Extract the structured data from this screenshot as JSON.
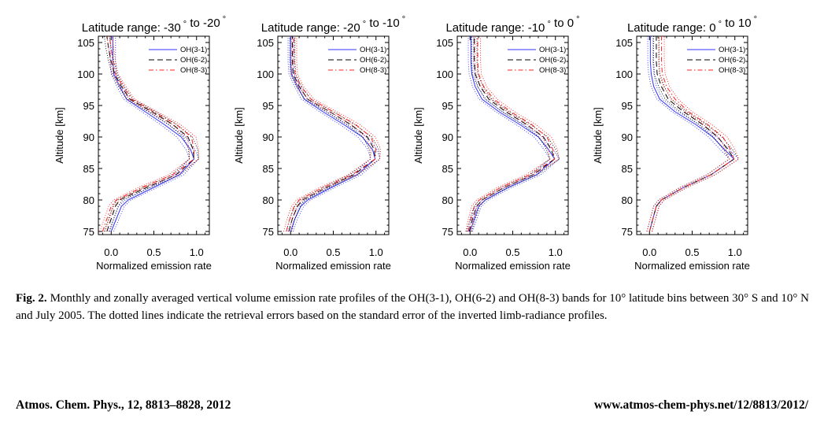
{
  "chart_data": [
    {
      "type": "line",
      "title": "Latitude range: -30° to -20°",
      "title_parts": [
        "Latitude range: -30",
        "°",
        " to -20",
        "°"
      ],
      "xlabel": "Normalized emission rate",
      "ylabel": "Altitude [km]",
      "xlim": [
        -0.15,
        1.15
      ],
      "ylim": [
        74.5,
        106
      ],
      "xticks": [
        "0.0",
        "0.5",
        "1.0"
      ],
      "yticks": [
        "75",
        "80",
        "85",
        "90",
        "95",
        "100",
        "105"
      ],
      "legend_position": "top-right",
      "series": [
        {
          "name": "OH(3-1)",
          "color": "#3333ff",
          "dash": "solid",
          "y": [
            75,
            77,
            79,
            80,
            82,
            84,
            86.5,
            88,
            90,
            92,
            94,
            96,
            98,
            100,
            102,
            104,
            106
          ],
          "x": [
            0.0,
            0.06,
            0.12,
            0.2,
            0.5,
            0.8,
            0.97,
            0.93,
            0.82,
            0.62,
            0.4,
            0.18,
            0.1,
            0.03,
            0.02,
            0.02,
            0.02
          ]
        },
        {
          "name": "OH(6-2)",
          "color": "#000000",
          "dash": "longdash",
          "y": [
            75,
            77,
            79,
            80,
            82,
            84,
            86.5,
            88,
            90,
            92,
            94,
            96,
            98,
            100,
            102,
            104,
            106
          ],
          "x": [
            -0.05,
            0.0,
            0.05,
            0.1,
            0.42,
            0.76,
            0.97,
            0.96,
            0.9,
            0.72,
            0.48,
            0.22,
            0.12,
            0.04,
            0.0,
            -0.03,
            -0.05
          ]
        },
        {
          "name": "OH(8-3)",
          "color": "#ff2222",
          "dash": "dashdot",
          "y": [
            75,
            77,
            79,
            80,
            82,
            84,
            86.5,
            88,
            90,
            92,
            94,
            96,
            98,
            100,
            102,
            104,
            106
          ],
          "x": [
            -0.1,
            -0.05,
            0.0,
            0.06,
            0.36,
            0.72,
            0.97,
            0.97,
            0.94,
            0.76,
            0.5,
            0.24,
            0.14,
            0.05,
            0.02,
            0.0,
            -0.02
          ]
        }
      ]
    },
    {
      "type": "line",
      "title": "Latitude range: -20° to -10°",
      "title_parts": [
        "Latitude range: -20",
        "°",
        " to -10",
        "°"
      ],
      "xlabel": "Normalized emission rate",
      "ylabel": "Altitude [km]",
      "xlim": [
        -0.15,
        1.15
      ],
      "ylim": [
        74.5,
        106
      ],
      "xticks": [
        "0.0",
        "0.5",
        "1.0"
      ],
      "yticks": [
        "75",
        "80",
        "85",
        "90",
        "95",
        "100",
        "105"
      ],
      "legend_position": "top-right",
      "series": [
        {
          "name": "OH(3-1)",
          "color": "#3333ff",
          "dash": "solid",
          "y": [
            75,
            77,
            79,
            80,
            82,
            84,
            86.5,
            88,
            90,
            92,
            94,
            96,
            98,
            100,
            102,
            104,
            106
          ],
          "x": [
            0.0,
            0.05,
            0.12,
            0.2,
            0.48,
            0.78,
            0.99,
            0.96,
            0.84,
            0.62,
            0.38,
            0.16,
            0.08,
            0.01,
            0.0,
            0.0,
            0.0
          ]
        },
        {
          "name": "OH(6-2)",
          "color": "#000000",
          "dash": "longdash",
          "y": [
            75,
            77,
            79,
            80,
            82,
            84,
            86.5,
            88,
            90,
            92,
            94,
            96,
            98,
            100,
            102,
            104,
            106
          ],
          "x": [
            -0.02,
            0.02,
            0.08,
            0.14,
            0.42,
            0.74,
            0.99,
            0.98,
            0.9,
            0.7,
            0.46,
            0.2,
            0.1,
            0.03,
            0.02,
            0.02,
            0.02
          ]
        },
        {
          "name": "OH(8-3)",
          "color": "#ff2222",
          "dash": "dashdot",
          "y": [
            75,
            77,
            79,
            80,
            82,
            84,
            86.5,
            88,
            90,
            92,
            94,
            96,
            98,
            100,
            102,
            104,
            106
          ],
          "x": [
            -0.05,
            -0.01,
            0.04,
            0.1,
            0.38,
            0.72,
            0.99,
            1.0,
            0.94,
            0.76,
            0.5,
            0.24,
            0.12,
            0.05,
            0.04,
            0.04,
            0.04
          ]
        }
      ]
    },
    {
      "type": "line",
      "title": "Latitude range: -10° to 0°",
      "title_parts": [
        "Latitude range: -10",
        "°",
        " to 0",
        "°"
      ],
      "xlabel": "Normalized emission rate",
      "ylabel": "Altitude [km]",
      "xlim": [
        -0.15,
        1.15
      ],
      "ylim": [
        74.5,
        106
      ],
      "xticks": [
        "0.0",
        "0.5",
        "1.0"
      ],
      "yticks": [
        "75",
        "80",
        "85",
        "90",
        "95",
        "100",
        "105"
      ],
      "legend_position": "top-right",
      "series": [
        {
          "name": "OH(3-1)",
          "color": "#3333ff",
          "dash": "solid",
          "y": [
            75,
            77,
            79,
            80,
            82,
            84,
            86.5,
            88,
            90,
            92,
            94,
            96,
            98,
            100,
            102,
            104,
            106
          ],
          "x": [
            0.0,
            0.05,
            0.1,
            0.18,
            0.45,
            0.78,
            0.99,
            0.92,
            0.8,
            0.58,
            0.34,
            0.14,
            0.06,
            0.02,
            0.01,
            0.01,
            0.01
          ]
        },
        {
          "name": "OH(6-2)",
          "color": "#000000",
          "dash": "longdash",
          "y": [
            75,
            77,
            79,
            80,
            82,
            84,
            86.5,
            88,
            90,
            92,
            94,
            96,
            98,
            100,
            102,
            104,
            106
          ],
          "x": [
            -0.01,
            0.03,
            0.08,
            0.14,
            0.4,
            0.74,
            0.99,
            0.95,
            0.86,
            0.66,
            0.42,
            0.22,
            0.12,
            0.06,
            0.05,
            0.05,
            0.05
          ]
        },
        {
          "name": "OH(8-3)",
          "color": "#ff2222",
          "dash": "dashdot",
          "y": [
            75,
            77,
            79,
            80,
            82,
            84,
            86.5,
            88,
            90,
            92,
            94,
            96,
            98,
            100,
            102,
            104,
            106
          ],
          "x": [
            -0.02,
            0.01,
            0.05,
            0.11,
            0.36,
            0.7,
            0.99,
            0.97,
            0.9,
            0.72,
            0.48,
            0.28,
            0.16,
            0.1,
            0.09,
            0.09,
            0.09
          ]
        }
      ]
    },
    {
      "type": "line",
      "title": "Latitude range: 0° to 10°",
      "title_parts": [
        "Latitude range: 0",
        "°",
        " to 10",
        "°"
      ],
      "xlabel": "Normalized emission rate",
      "ylabel": "Altitude [km]",
      "xlim": [
        -0.15,
        1.15
      ],
      "ylim": [
        74.5,
        106
      ],
      "xticks": [
        "0.0",
        "0.5",
        "1.0"
      ],
      "yticks": [
        "75",
        "80",
        "85",
        "90",
        "95",
        "100",
        "105"
      ],
      "legend_position": "top-right",
      "series": [
        {
          "name": "OH(3-1)",
          "color": "#3333ff",
          "dash": "solid",
          "y": [
            75,
            77,
            79,
            80,
            82,
            84,
            86.5,
            88,
            90,
            92,
            94,
            96,
            98,
            100,
            102,
            104,
            106
          ],
          "x": [
            0.0,
            0.04,
            0.08,
            0.14,
            0.4,
            0.72,
            0.99,
            0.88,
            0.74,
            0.54,
            0.3,
            0.12,
            0.05,
            0.02,
            0.01,
            0.01,
            0.01
          ]
        },
        {
          "name": "OH(6-2)",
          "color": "#000000",
          "dash": "longdash",
          "y": [
            75,
            77,
            79,
            80,
            82,
            84,
            86.5,
            88,
            90,
            92,
            94,
            96,
            98,
            100,
            102,
            104,
            106
          ],
          "x": [
            0.0,
            0.04,
            0.08,
            0.14,
            0.4,
            0.72,
            0.99,
            0.92,
            0.8,
            0.62,
            0.4,
            0.22,
            0.14,
            0.09,
            0.08,
            0.08,
            0.08
          ]
        },
        {
          "name": "OH(8-3)",
          "color": "#ff2222",
          "dash": "dashdot",
          "y": [
            75,
            77,
            79,
            80,
            82,
            84,
            86.5,
            88,
            90,
            92,
            94,
            96,
            98,
            100,
            102,
            104,
            106
          ],
          "x": [
            0.0,
            0.04,
            0.08,
            0.14,
            0.4,
            0.72,
            0.99,
            0.95,
            0.86,
            0.68,
            0.46,
            0.3,
            0.2,
            0.15,
            0.14,
            0.14,
            0.14
          ]
        }
      ]
    }
  ],
  "caption": {
    "label": "Fig. 2.",
    "text": "Monthly and zonally averaged vertical volume emission rate profiles of the OH(3-1), OH(6-2) and OH(8-3) bands for 10° latitude bins between 30° S and 10° N and July 2005. The dotted lines indicate the retrieval errors based on the standard error of the inverted limb-radiance profiles."
  },
  "footer": {
    "left": "Atmos. Chem. Phys., 12, 8813–8828, 2012",
    "right": "www.atmos-chem-phys.net/12/8813/2012/"
  }
}
